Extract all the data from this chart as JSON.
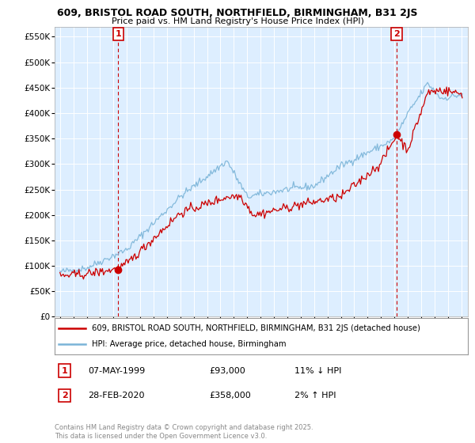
{
  "title": "609, BRISTOL ROAD SOUTH, NORTHFIELD, BIRMINGHAM, B31 2JS",
  "subtitle": "Price paid vs. HM Land Registry's House Price Index (HPI)",
  "yticks": [
    0,
    50000,
    100000,
    150000,
    200000,
    250000,
    300000,
    350000,
    400000,
    450000,
    500000,
    550000
  ],
  "ytick_labels": [
    "£0",
    "£50K",
    "£100K",
    "£150K",
    "£200K",
    "£250K",
    "£300K",
    "£350K",
    "£400K",
    "£450K",
    "£500K",
    "£550K"
  ],
  "xlim_start": 1994.6,
  "xlim_end": 2025.5,
  "ylim_min": 0,
  "ylim_max": 570000,
  "hpi_color": "#7ab4d8",
  "price_color": "#cc0000",
  "background_color": "#ffffff",
  "plot_bg_color": "#ddeeff",
  "grid_color": "#ffffff",
  "marker1_x": 1999.36,
  "marker1_y": 93000,
  "marker1_label": "1",
  "marker1_date": "07-MAY-1999",
  "marker1_price": "£93,000",
  "marker1_hpi": "11% ↓ HPI",
  "marker2_x": 2020.17,
  "marker2_y": 358000,
  "marker2_label": "2",
  "marker2_date": "28-FEB-2020",
  "marker2_price": "£358,000",
  "marker2_hpi": "2% ↑ HPI",
  "vline_color": "#cc0000",
  "legend_line1": "609, BRISTOL ROAD SOUTH, NORTHFIELD, BIRMINGHAM, B31 2JS (detached house)",
  "legend_line2": "HPI: Average price, detached house, Birmingham",
  "footer": "Contains HM Land Registry data © Crown copyright and database right 2025.\nThis data is licensed under the Open Government Licence v3.0."
}
